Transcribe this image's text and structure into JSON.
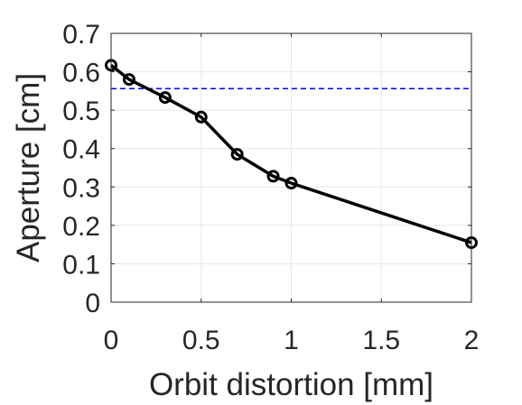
{
  "chart_data": {
    "type": "line",
    "title": "",
    "xlabel": "Orbit distortion [mm]",
    "ylabel": "Aperture [cm]",
    "xlim": [
      0,
      2
    ],
    "ylim": [
      0,
      0.7
    ],
    "x_ticks": [
      "0",
      "0.5",
      "1",
      "1.5",
      "2"
    ],
    "y_ticks": [
      "0",
      "0.1",
      "0.2",
      "0.3",
      "0.4",
      "0.5",
      "0.6",
      "0.7"
    ],
    "grid": true,
    "series": [
      {
        "x": [
          0,
          0.1,
          0.3,
          0.5,
          0.7,
          0.9,
          1.0,
          2.0
        ],
        "y": [
          0.617,
          0.58,
          0.533,
          0.482,
          0.385,
          0.328,
          0.31,
          0.155
        ],
        "color": "#000000",
        "marker": "circle"
      }
    ],
    "reference_lines": [
      {
        "orientation": "horizontal",
        "y": 0.556,
        "style": "dashed",
        "color": "#0000ff"
      }
    ]
  }
}
